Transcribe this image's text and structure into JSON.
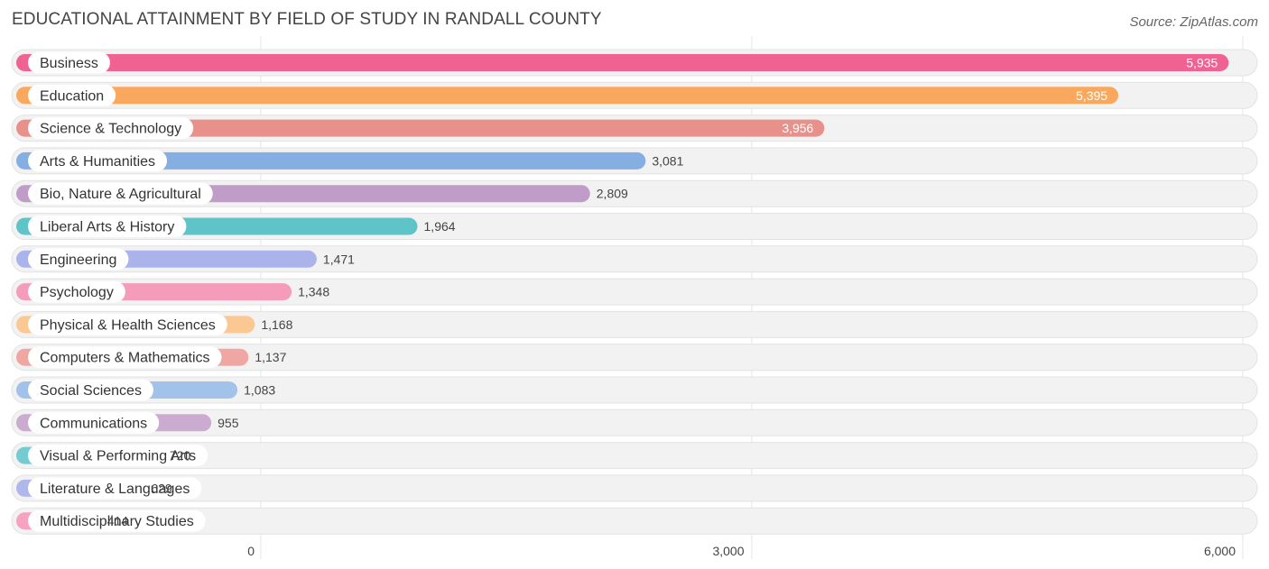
{
  "chart_data": {
    "type": "bar",
    "orientation": "horizontal",
    "title": "EDUCATIONAL ATTAINMENT BY FIELD OF STUDY IN RANDALL COUNTY",
    "source": "Source: ZipAtlas.com",
    "categories": [
      "Business",
      "Education",
      "Science & Technology",
      "Arts & Humanities",
      "Bio, Nature & Agricultural",
      "Liberal Arts & History",
      "Engineering",
      "Psychology",
      "Physical & Health Sciences",
      "Computers & Mathematics",
      "Social Sciences",
      "Communications",
      "Visual & Performing Arts",
      "Literature & Languages",
      "Multidisciplinary Studies"
    ],
    "values": [
      5935,
      5395,
      3956,
      3081,
      2809,
      1964,
      1471,
      1348,
      1168,
      1137,
      1083,
      955,
      720,
      629,
      414
    ],
    "value_labels": [
      "5,935",
      "5,395",
      "3,956",
      "3,081",
      "2,809",
      "1,964",
      "1,471",
      "1,348",
      "1,168",
      "1,137",
      "1,083",
      "955",
      "720",
      "629",
      "414"
    ],
    "colors": [
      "#f06292",
      "#f9a85d",
      "#e8918a",
      "#85aee3",
      "#c09cc8",
      "#5fc4c8",
      "#aab4ea",
      "#f59cba",
      "#fbc793",
      "#f0a7a4",
      "#a2c2ea",
      "#ccabd0",
      "#74cbd0",
      "#b0b7ea",
      "#f6a3c2"
    ],
    "xlim": [
      0,
      6000
    ],
    "ticks": [
      0,
      3000,
      6000
    ],
    "tick_labels": [
      "0",
      "3,000",
      "6,000"
    ],
    "grid": true
  }
}
